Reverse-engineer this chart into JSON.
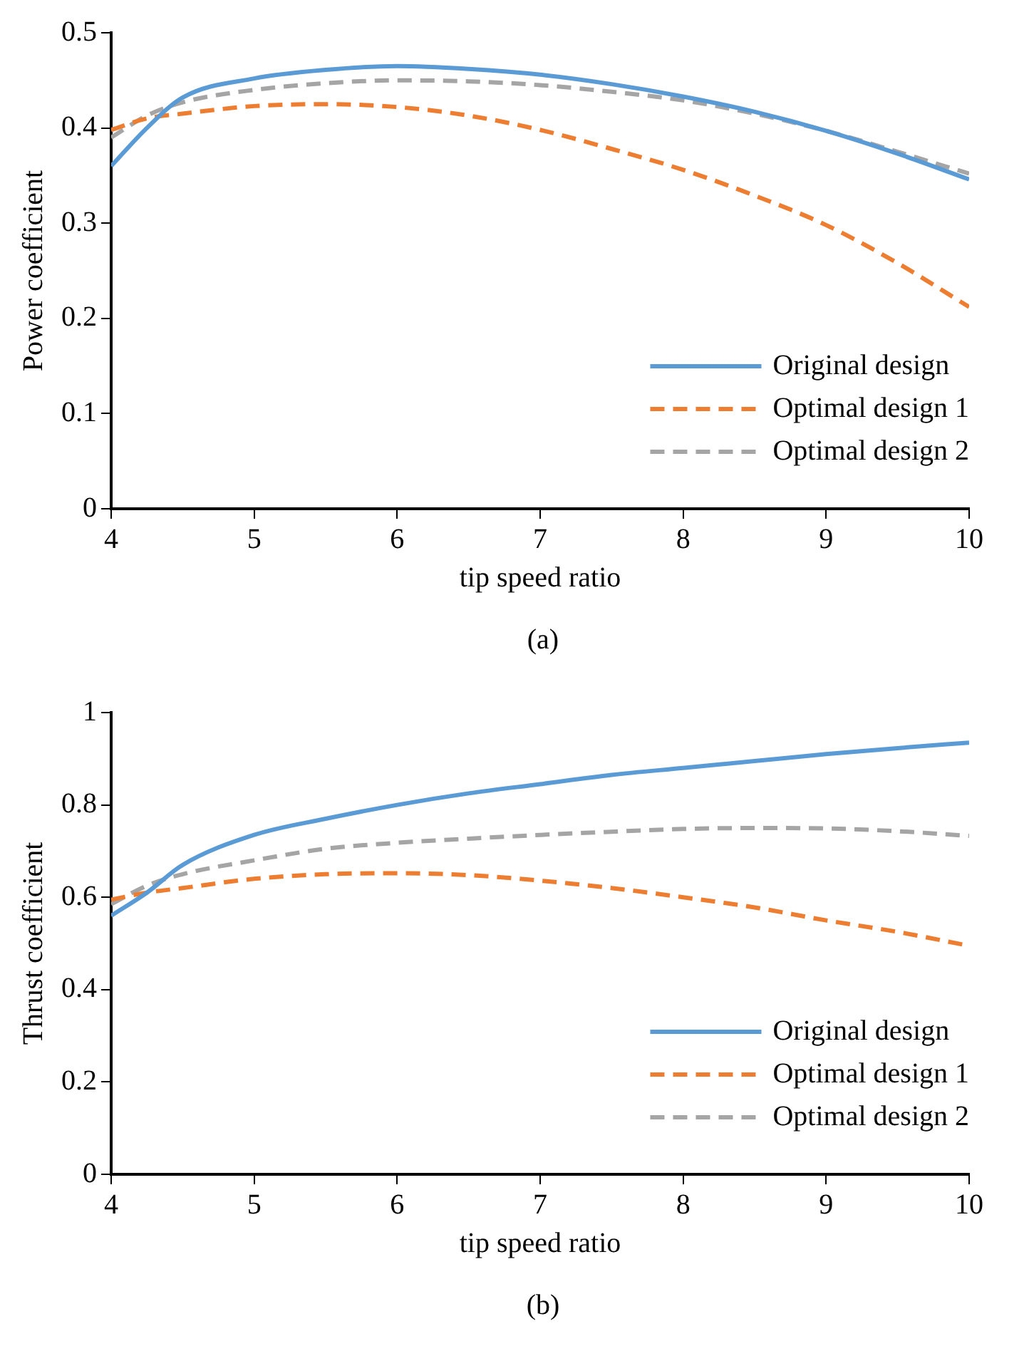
{
  "chart_data": [
    {
      "type": "line",
      "xlabel": "tip speed ratio",
      "ylabel": "Power coefficient",
      "annotations": [
        "(a)"
      ],
      "x": [
        4,
        4.25,
        4.5,
        5,
        5.5,
        6,
        6.5,
        7,
        7.5,
        8,
        8.5,
        9,
        9.5,
        10
      ],
      "xlim": [
        4,
        10
      ],
      "xticks": [
        4,
        5,
        6,
        7,
        8,
        9,
        10
      ],
      "ylim": [
        0,
        0.5
      ],
      "yticks": [
        0,
        0.1,
        0.2,
        0.3,
        0.4,
        0.5
      ],
      "grid": false,
      "legend": "bottom right",
      "marker": "none",
      "series": [
        {
          "name": "Original design",
          "color": "#5b9bd5",
          "line_style": "solid",
          "values": [
            0.36,
            0.4,
            0.432,
            0.452,
            0.461,
            0.465,
            0.462,
            0.456,
            0.446,
            0.433,
            0.417,
            0.397,
            0.373,
            0.346
          ]
        },
        {
          "name": "Optimal design 1",
          "color": "#ed7d31",
          "line_style": "dashed",
          "values": [
            0.398,
            0.41,
            0.415,
            0.423,
            0.425,
            0.422,
            0.413,
            0.398,
            0.378,
            0.356,
            0.329,
            0.298,
            0.258,
            0.212
          ]
        },
        {
          "name": "Optimal design 2",
          "color": "#a5a5a5",
          "line_style": "dashed",
          "values": [
            0.39,
            0.413,
            0.427,
            0.44,
            0.447,
            0.45,
            0.449,
            0.445,
            0.438,
            0.429,
            0.415,
            0.397,
            0.375,
            0.352
          ]
        }
      ]
    },
    {
      "type": "line",
      "xlabel": "tip speed ratio",
      "ylabel": "Thrust coefficient",
      "annotations": [
        "(b)"
      ],
      "x": [
        4,
        4.25,
        4.5,
        5,
        5.5,
        6,
        6.5,
        7,
        7.5,
        8,
        8.5,
        9,
        9.5,
        10
      ],
      "xlim": [
        4,
        10
      ],
      "xticks": [
        4,
        5,
        6,
        7,
        8,
        9,
        10
      ],
      "ylim": [
        0,
        1
      ],
      "yticks": [
        0,
        0.2,
        0.4,
        0.6,
        0.8,
        1
      ],
      "grid": false,
      "legend": "bottom right",
      "marker": "none",
      "series": [
        {
          "name": "Original design",
          "color": "#5b9bd5",
          "line_style": "solid",
          "values": [
            0.56,
            0.61,
            0.67,
            0.735,
            0.77,
            0.8,
            0.825,
            0.845,
            0.865,
            0.88,
            0.895,
            0.91,
            0.923,
            0.935
          ]
        },
        {
          "name": "Optimal design 1",
          "color": "#ed7d31",
          "line_style": "dashed",
          "values": [
            0.595,
            0.61,
            0.62,
            0.64,
            0.65,
            0.652,
            0.648,
            0.636,
            0.62,
            0.6,
            0.578,
            0.55,
            0.525,
            0.495
          ]
        },
        {
          "name": "Optimal design 2",
          "color": "#a5a5a5",
          "line_style": "dashed",
          "values": [
            0.585,
            0.625,
            0.65,
            0.68,
            0.705,
            0.718,
            0.727,
            0.735,
            0.742,
            0.748,
            0.75,
            0.749,
            0.743,
            0.733
          ]
        }
      ]
    }
  ]
}
